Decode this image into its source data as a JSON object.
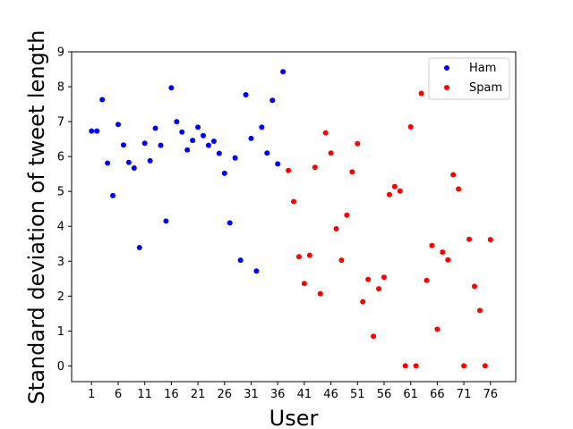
{
  "chart_data": {
    "type": "scatter",
    "title": "",
    "xlabel": "User",
    "ylabel": "Standard deviation of tweet length",
    "xlim": [
      -2.75,
      80.75
    ],
    "ylim": [
      -0.45,
      9.0
    ],
    "x_ticks": [
      1,
      6,
      11,
      16,
      21,
      26,
      31,
      36,
      41,
      46,
      51,
      56,
      61,
      66,
      71,
      76
    ],
    "y_ticks": [
      0,
      1,
      2,
      3,
      4,
      5,
      6,
      7,
      8,
      9
    ],
    "grid": false,
    "legend_position": "top-right",
    "series": [
      {
        "name": "Ham",
        "color": "#0000ff",
        "x": [
          1,
          2,
          3,
          4,
          5,
          6,
          7,
          8,
          9,
          10,
          11,
          12,
          13,
          14,
          15,
          16,
          17,
          18,
          19,
          20,
          21,
          22,
          23,
          24,
          25,
          26,
          27,
          28,
          29,
          30,
          31,
          32,
          33,
          34,
          35,
          36,
          37
        ],
        "y": [
          6.73,
          6.73,
          7.63,
          5.81,
          4.88,
          6.92,
          6.33,
          5.83,
          5.67,
          3.39,
          6.38,
          5.88,
          6.81,
          6.32,
          4.15,
          7.97,
          7.0,
          6.7,
          6.19,
          6.46,
          6.84,
          6.6,
          6.32,
          6.44,
          6.09,
          5.52,
          4.1,
          5.96,
          3.03,
          7.77,
          6.52,
          2.72,
          6.84,
          6.1,
          7.61,
          5.79,
          8.43
        ]
      },
      {
        "name": "Spam",
        "color": "#ff0000",
        "x": [
          38,
          39,
          40,
          41,
          42,
          43,
          44,
          45,
          46,
          47,
          48,
          49,
          50,
          51,
          52,
          53,
          54,
          55,
          56,
          57,
          58,
          59,
          60,
          61,
          62,
          63,
          64,
          65,
          66,
          67,
          68,
          69,
          70,
          71,
          72,
          73,
          74,
          75,
          76
        ],
        "y": [
          5.6,
          4.71,
          3.13,
          2.36,
          3.17,
          5.69,
          2.07,
          6.68,
          6.1,
          3.93,
          3.03,
          4.32,
          5.56,
          6.37,
          1.84,
          2.48,
          0.85,
          2.21,
          2.54,
          4.91,
          5.14,
          5.01,
          0.0,
          6.85,
          0.0,
          7.81,
          2.45,
          3.45,
          1.05,
          3.26,
          3.04,
          5.48,
          5.07,
          0.0,
          3.63,
          2.28,
          1.59,
          0.0,
          3.62
        ]
      }
    ]
  }
}
